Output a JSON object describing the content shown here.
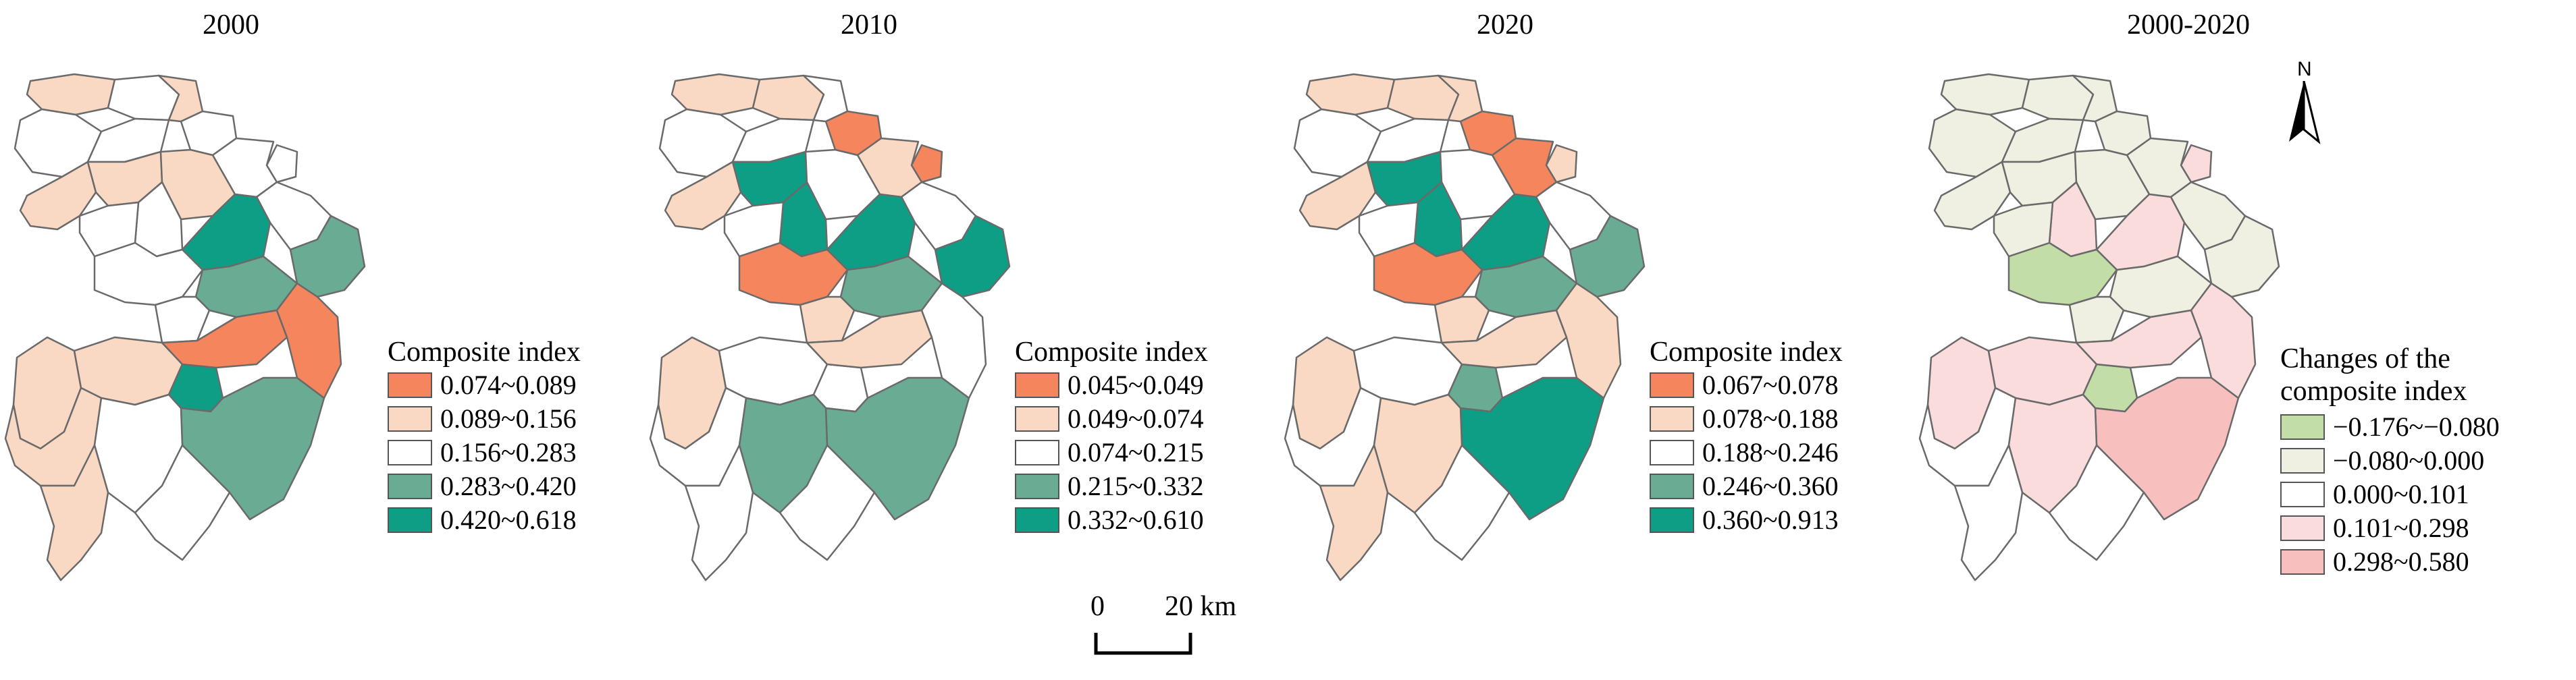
{
  "panels": [
    {
      "title": "2000",
      "legend_title": "Composite index",
      "legend": [
        {
          "label": "0.074~0.089",
          "color": "#f5855c"
        },
        {
          "label": "0.089~0.156",
          "color": "#fad9c4"
        },
        {
          "label": "0.156~0.283",
          "color": "#ffffff"
        },
        {
          "label": "0.283~0.420",
          "color": "#6aab93"
        },
        {
          "label": "0.420~0.618",
          "color": "#0e9e85"
        }
      ]
    },
    {
      "title": "2010",
      "legend_title": "Composite index",
      "legend": [
        {
          "label": "0.045~0.049",
          "color": "#f5855c"
        },
        {
          "label": "0.049~0.074",
          "color": "#fad9c4"
        },
        {
          "label": "0.074~0.215",
          "color": "#ffffff"
        },
        {
          "label": "0.215~0.332",
          "color": "#6aab93"
        },
        {
          "label": "0.332~0.610",
          "color": "#0e9e85"
        }
      ]
    },
    {
      "title": "2020",
      "legend_title": "Composite index",
      "legend": [
        {
          "label": "0.067~0.078",
          "color": "#f5855c"
        },
        {
          "label": "0.078~0.188",
          "color": "#fad9c4"
        },
        {
          "label": "0.188~0.246",
          "color": "#ffffff"
        },
        {
          "label": "0.246~0.360",
          "color": "#6aab93"
        },
        {
          "label": "0.360~0.913",
          "color": "#0e9e85"
        }
      ]
    },
    {
      "title": "2000-2020",
      "legend_title_line1": "Changes of the",
      "legend_title_line2": "composite index",
      "legend": [
        {
          "label": "−0.176~−0.080",
          "color": "#c2dda8"
        },
        {
          "label": "−0.080~0.000",
          "color": "#eff0e2"
        },
        {
          "label": "0.000~0.101",
          "color": "#ffffff"
        },
        {
          "label": "0.101~0.298",
          "color": "#fbdcdc"
        },
        {
          "label": "0.298~0.580",
          "color": "#f8bfbf"
        }
      ]
    }
  ],
  "scale_bar": {
    "left_label": "0",
    "right_label": "20 km"
  },
  "north_arrow": {
    "label": "N"
  },
  "map_fills": [
    [
      "#fad9c4",
      "#ffffff",
      "#ffffff",
      "#fad9c4",
      "#ffffff",
      "#ffffff",
      "#ffffff",
      "#ffffff",
      "#fad9c4",
      "#fad9c4",
      "#fad9c4",
      "#ffffff",
      "#ffffff",
      "#0e9e85",
      "#6aab93",
      "#ffffff",
      "#ffffff",
      "#6aab93",
      "#ffffff",
      "#fad9c4",
      "#fad9c4",
      "#0e9e85",
      "#f5855c",
      "#6aab93",
      "#f5855c",
      "#fad9c4",
      "#ffffff",
      "#fad9c4",
      "#ffffff"
    ],
    [
      "#fad9c4",
      "#fad9c4",
      "#ffffff",
      "#ffffff",
      "#ffffff",
      "#f5855c",
      "#f5855c",
      "#fad9c4",
      "#fad9c4",
      "#0e9e85",
      "#ffffff",
      "#ffffff",
      "#0e9e85",
      "#0e9e85",
      "#0e9e85",
      "#f5855c",
      "#ffffff",
      "#6aab93",
      "#fad9c4",
      "#fad9c4",
      "#ffffff",
      "#ffffff",
      "#fad9c4",
      "#6aab93",
      "#ffffff",
      "#ffffff",
      "#6aab93",
      "#ffffff",
      "#ffffff"
    ],
    [
      "#fad9c4",
      "#fad9c4",
      "#ffffff",
      "#fad9c4",
      "#ffffff",
      "#f5855c",
      "#fad9c4",
      "#f5855c",
      "#fad9c4",
      "#0e9e85",
      "#ffffff",
      "#ffffff",
      "#0e9e85",
      "#0e9e85",
      "#6aab93",
      "#f5855c",
      "#ffffff",
      "#6aab93",
      "#fad9c4",
      "#fad9c4",
      "#ffffff",
      "#6aab93",
      "#fad9c4",
      "#0e9e85",
      "#fad9c4",
      "#ffffff",
      "#fad9c4",
      "#fad9c4",
      "#ffffff"
    ],
    [
      "#eff0e2",
      "#eff0e2",
      "#eff0e2",
      "#eff0e2",
      "#eff0e2",
      "#eff0e2",
      "#fbdcdc",
      "#eff0e2",
      "#eff0e2",
      "#eff0e2",
      "#eff0e2",
      "#eff0e2",
      "#fbdcdc",
      "#fbdcdc",
      "#eff0e2",
      "#c2dda8",
      "#eff0e2",
      "#eff0e2",
      "#eff0e2",
      "#fbdcdc",
      "#fbdcdc",
      "#c2dda8",
      "#fbdcdc",
      "#f8bfbf",
      "#fbdcdc",
      "#ffffff",
      "#fbdcdc",
      "#ffffff",
      "#ffffff"
    ]
  ]
}
